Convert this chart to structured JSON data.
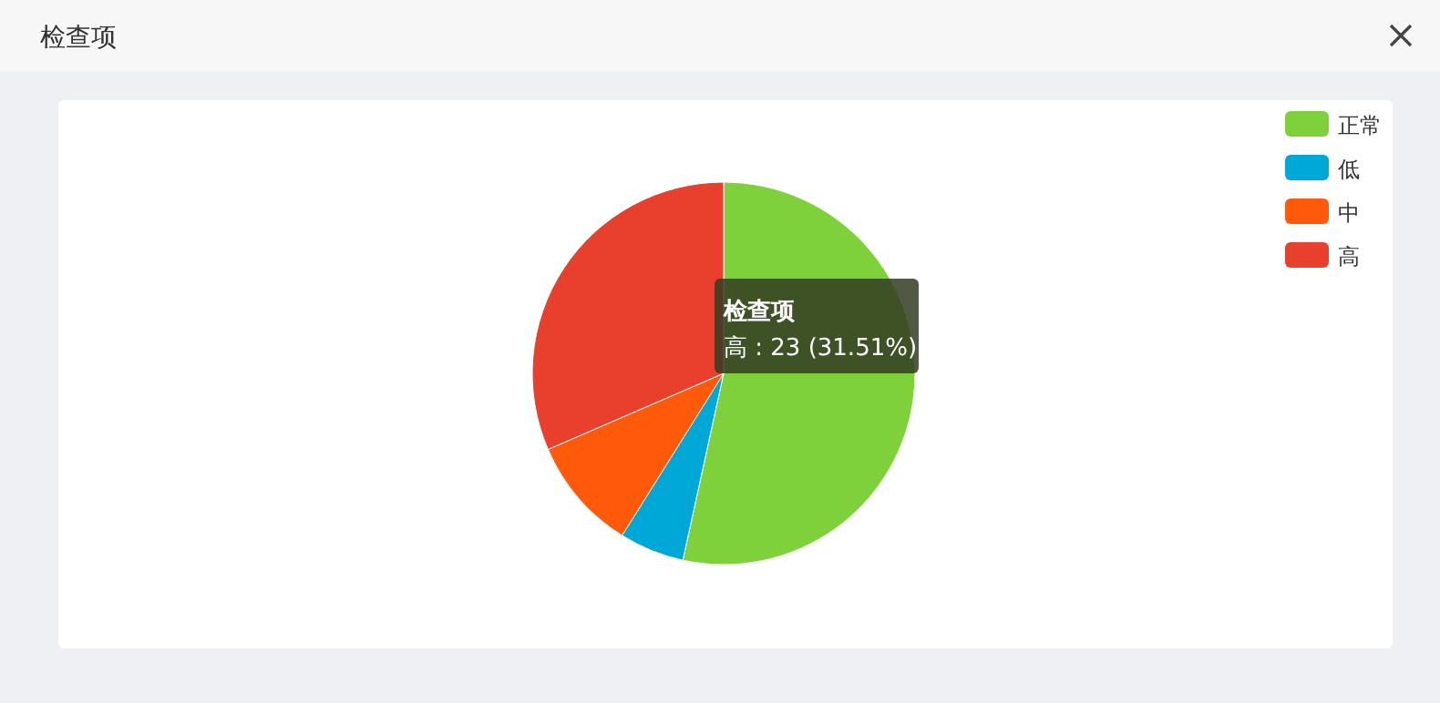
{
  "chart_data": {
    "type": "pie",
    "title": "检查项",
    "categories": [
      "正常",
      "低",
      "中",
      "高"
    ],
    "values": [
      53.42,
      5.48,
      9.59,
      31.51
    ],
    "colors": [
      "#7ed13a",
      "#00a8d8",
      "#ff5a0a",
      "#e8402c"
    ],
    "legend": "top right",
    "annotations": [
      "检查项",
      "高 : 23 (31.51%)"
    ]
  }
}
